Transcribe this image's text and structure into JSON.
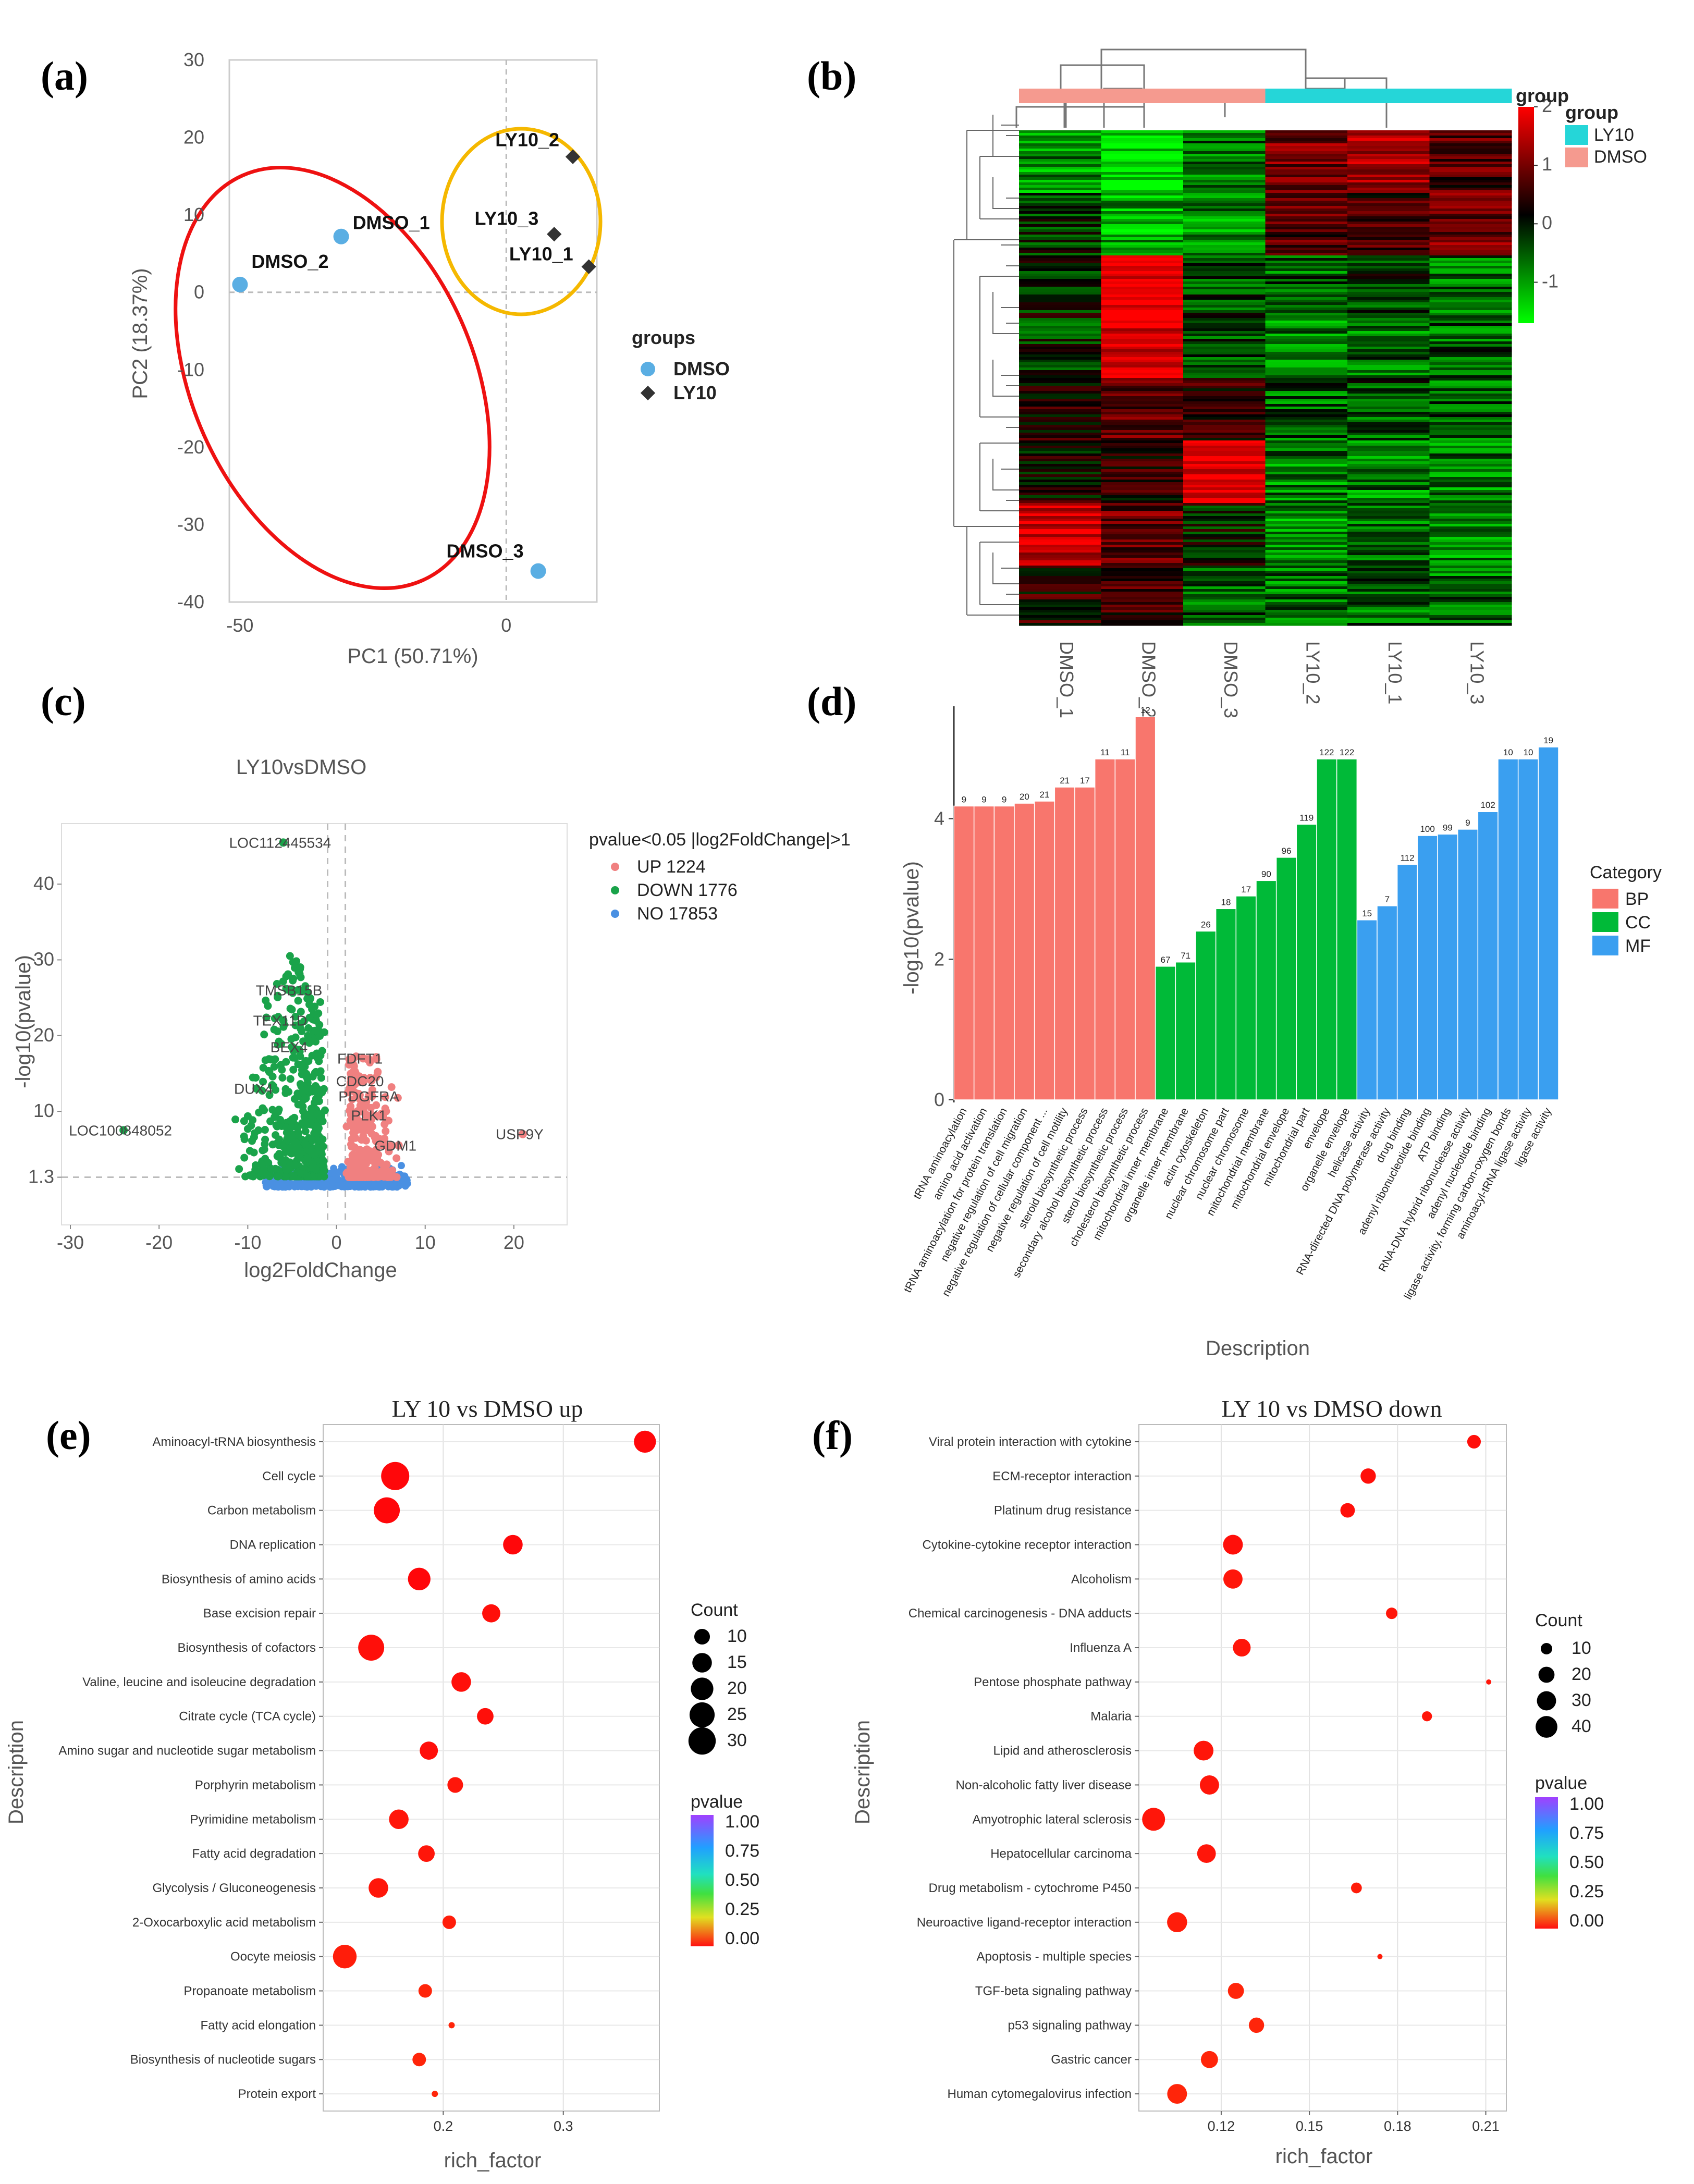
{
  "panels": {
    "a": "(a)",
    "b": "(b)",
    "c": "(c)",
    "d": "(d)",
    "e": "(e)",
    "f": "(f)"
  },
  "chart_data": [
    {
      "panel": "a",
      "type": "scatter",
      "xlabel": "PC1 (50.71%)",
      "ylabel": "PC2 (18.37%)",
      "xticks": [
        -50,
        0
      ],
      "yticks": [
        30,
        20,
        10,
        0,
        -10,
        -20,
        -30,
        -40
      ],
      "xlim": [
        -52,
        17
      ],
      "ylim": [
        -40,
        30
      ],
      "legend_title": "groups",
      "series": [
        {
          "name": "DMSO",
          "color": "#5aaee3",
          "marker": "circle",
          "points": [
            {
              "label": "DMSO_1",
              "x": -31,
              "y": 7.2
            },
            {
              "label": "DMSO_2",
              "x": -50,
              "y": 1
            },
            {
              "label": "DMSO_3",
              "x": 6,
              "y": -36
            }
          ]
        },
        {
          "name": "LY10",
          "color": "#333333",
          "marker": "diamond",
          "points": [
            {
              "label": "LY10_2",
              "x": 12.5,
              "y": 17.5
            },
            {
              "label": "LY10_3",
              "x": 9,
              "y": 7.5
            },
            {
              "label": "LY10_1",
              "x": 15.5,
              "y": 3.3
            }
          ]
        }
      ]
    },
    {
      "panel": "b",
      "type": "heatmap",
      "columns": [
        "DMSO_1",
        "DMSO_2",
        "DMSO_3",
        "LY10_2",
        "LY10_1",
        "LY10_3"
      ],
      "column_groups": [
        "DMSO",
        "DMSO",
        "DMSO",
        "LY10",
        "LY10",
        "LY10"
      ],
      "legend_title": "group",
      "group_legend": [
        {
          "name": "LY10",
          "color": "#25d6d8"
        },
        {
          "name": "DMSO",
          "color": "#f59a8f"
        }
      ],
      "colorbar": {
        "ticks": [
          2,
          1,
          0,
          -1
        ],
        "min": -1.7,
        "max": 2
      },
      "block_values": [
        [
          -0.9,
          -1.5,
          -0.7,
          0.9,
          1.3,
          0.6
        ],
        [
          -0.3,
          -1.1,
          -0.9,
          0.6,
          0.5,
          0.9
        ],
        [
          -0.1,
          2.0,
          -0.4,
          -0.6,
          -0.3,
          -0.7
        ],
        [
          -0.3,
          1.8,
          -0.4,
          -0.9,
          -0.7,
          -0.6
        ],
        [
          0.2,
          0.7,
          0.3,
          -0.6,
          -0.5,
          -0.6
        ],
        [
          0.1,
          0.3,
          1.8,
          -0.8,
          -0.8,
          -0.8
        ],
        [
          1.6,
          0.8,
          -0.1,
          -0.9,
          -0.8,
          -0.9
        ],
        [
          0.3,
          0.5,
          -0.6,
          -0.7,
          -0.6,
          -0.7
        ]
      ]
    },
    {
      "panel": "c",
      "type": "scatter",
      "title": "LY10vsDMSO",
      "xlabel": "log2FoldChange",
      "ylabel": "-log10(pvalue)",
      "xticks": [
        -30,
        -20,
        -10,
        0,
        10,
        20
      ],
      "yticks": [
        40,
        30,
        20,
        10,
        1.3
      ],
      "xlim": [
        -31,
        26
      ],
      "ylim": [
        -5,
        48
      ],
      "legend_title": "pvalue<0.05 |log2FoldChange|>1",
      "legend": [
        {
          "name": "UP 1224",
          "color": "#f08080"
        },
        {
          "name": "DOWN 1776",
          "color": "#1aa34a"
        },
        {
          "name": "NO 17853",
          "color": "#4a90e2"
        }
      ],
      "labels": [
        {
          "text": "LOC112445534",
          "x": -6,
          "y": 45.5,
          "group": "down"
        },
        {
          "text": "TMSB15B",
          "x": -5,
          "y": 26,
          "group": "down"
        },
        {
          "text": "TEX11D",
          "x": -6,
          "y": 22,
          "group": "down"
        },
        {
          "text": "BEX4",
          "x": -5,
          "y": 18.5,
          "group": "down"
        },
        {
          "text": "DUX4",
          "x": -9,
          "y": 13,
          "group": "down"
        },
        {
          "text": "LOC100848052",
          "x": -24,
          "y": 7.5,
          "group": "down"
        },
        {
          "text": "FDFT1",
          "x": 3,
          "y": 17,
          "group": "up"
        },
        {
          "text": "CDC20",
          "x": 3,
          "y": 14,
          "group": "up"
        },
        {
          "text": "PDGFRA",
          "x": 4,
          "y": 12,
          "group": "up"
        },
        {
          "text": "PLK1",
          "x": 4,
          "y": 9.5,
          "group": "up"
        },
        {
          "text": "GDM1",
          "x": 7,
          "y": 5.5,
          "group": "up"
        },
        {
          "text": "USP9Y",
          "x": 21,
          "y": 7,
          "group": "up"
        }
      ]
    },
    {
      "panel": "d",
      "type": "bar",
      "xlabel": "Description",
      "ylabel": "-log10(pvalue)",
      "yticks": [
        0,
        2,
        4
      ],
      "ylim": [
        0,
        5.6
      ],
      "legend_title": "Category",
      "legend": [
        {
          "name": "BP",
          "color": "#f8766d"
        },
        {
          "name": "CC",
          "color": "#00ba38"
        },
        {
          "name": "MF",
          "color": "#3a9ff0"
        }
      ],
      "bars": [
        {
          "label": "tRNA aminoacylation",
          "value": 4.18,
          "count": "9",
          "cat": "BP"
        },
        {
          "label": "amino acid activation",
          "value": 4.18,
          "count": "9",
          "cat": "BP"
        },
        {
          "label": "tRNA aminoacylation for protein translation",
          "value": 4.18,
          "count": "9",
          "cat": "BP"
        },
        {
          "label": "negative regulation of cell migration",
          "value": 4.22,
          "count": "20",
          "cat": "BP"
        },
        {
          "label": "negative regulation of cellular component ...",
          "value": 4.25,
          "count": "21",
          "cat": "BP"
        },
        {
          "label": "negative regulation of cell motility",
          "value": 4.45,
          "count": "21",
          "cat": "BP"
        },
        {
          "label": "steroid biosynthetic process",
          "value": 4.45,
          "count": "17",
          "cat": "BP"
        },
        {
          "label": "secondary alcohol biosynthetic process",
          "value": 4.85,
          "count": "11",
          "cat": "BP"
        },
        {
          "label": "sterol biosynthetic process",
          "value": 4.85,
          "count": "11",
          "cat": "BP"
        },
        {
          "label": "cholesterol biosynthetic process",
          "value": 5.45,
          "count": "12",
          "cat": "BP"
        },
        {
          "label": "mitochondrial inner membrane",
          "value": 1.9,
          "count": "67",
          "cat": "CC"
        },
        {
          "label": "organelle inner membrane",
          "value": 1.96,
          "count": "71",
          "cat": "CC"
        },
        {
          "label": "actin cytoskeleton",
          "value": 2.4,
          "count": "26",
          "cat": "CC"
        },
        {
          "label": "nuclear chromosome part",
          "value": 2.72,
          "count": "18",
          "cat": "CC"
        },
        {
          "label": "nuclear chromosome",
          "value": 2.9,
          "count": "17",
          "cat": "CC"
        },
        {
          "label": "mitochondrial membrane",
          "value": 3.12,
          "count": "90",
          "cat": "CC"
        },
        {
          "label": "mitochondrial envelope",
          "value": 3.45,
          "count": "96",
          "cat": "CC"
        },
        {
          "label": "mitochondrial part",
          "value": 3.92,
          "count": "119",
          "cat": "CC"
        },
        {
          "label": "envelope",
          "value": 4.85,
          "count": "122",
          "cat": "CC"
        },
        {
          "label": "organelle envelope",
          "value": 4.85,
          "count": "122",
          "cat": "CC"
        },
        {
          "label": "helicase activity",
          "value": 2.56,
          "count": "15",
          "cat": "MF"
        },
        {
          "label": "RNA-directed DNA polymerase activity",
          "value": 2.76,
          "count": "7",
          "cat": "MF"
        },
        {
          "label": "drug binding",
          "value": 3.35,
          "count": "112",
          "cat": "MF"
        },
        {
          "label": "adenyl ribonucleotide binding",
          "value": 3.76,
          "count": "100",
          "cat": "MF"
        },
        {
          "label": "ATP binding",
          "value": 3.78,
          "count": "99",
          "cat": "MF"
        },
        {
          "label": "RNA-DNA hybrid ribonuclease activity",
          "value": 3.85,
          "count": "9",
          "cat": "MF"
        },
        {
          "label": "adenyl nucleotide binding",
          "value": 4.1,
          "count": "102",
          "cat": "MF"
        },
        {
          "label": "ligase activity, forming carbon-oxygen bonds",
          "value": 4.85,
          "count": "10",
          "cat": "MF"
        },
        {
          "label": "aminoacyl-tRNA ligase activity",
          "value": 4.85,
          "count": "10",
          "cat": "MF"
        },
        {
          "label": "ligase activity",
          "value": 5.02,
          "count": "19",
          "cat": "MF"
        }
      ]
    },
    {
      "panel": "e",
      "type": "scatter",
      "title": "LY 10 vs DMSO up",
      "xlabel": "rich_factor",
      "ylabel": "Description",
      "xticks": [
        0.2,
        0.3
      ],
      "xlim": [
        0.1,
        0.38
      ],
      "size_legend_title": "Count",
      "size_legend": [
        10,
        15,
        20,
        25,
        30
      ],
      "color_legend_title": "pvalue",
      "color_ticks": [
        "1.00",
        "0.75",
        "0.50",
        "0.25",
        "0.00"
      ],
      "rows": [
        {
          "term": "Aminoacyl-tRNA biosynthesis",
          "x": 0.368,
          "count": 19,
          "p": 0.01
        },
        {
          "term": "Cell cycle",
          "x": 0.16,
          "count": 32,
          "p": 0.01
        },
        {
          "term": "Carbon metabolism",
          "x": 0.153,
          "count": 27,
          "p": 0.01
        },
        {
          "term": "DNA replication",
          "x": 0.258,
          "count": 15,
          "p": 0.01
        },
        {
          "term": "Biosynthesis of amino acids",
          "x": 0.18,
          "count": 20,
          "p": 0.01
        },
        {
          "term": "Base excision repair",
          "x": 0.24,
          "count": 13,
          "p": 0.02
        },
        {
          "term": "Biosynthesis of cofactors",
          "x": 0.14,
          "count": 27,
          "p": 0.02
        },
        {
          "term": "Valine, leucine and isoleucine degradation",
          "x": 0.215,
          "count": 15,
          "p": 0.02
        },
        {
          "term": "Citrate cycle (TCA cycle)",
          "x": 0.235,
          "count": 11,
          "p": 0.02
        },
        {
          "term": "Amino sugar and nucleotide sugar metabolism",
          "x": 0.188,
          "count": 13,
          "p": 0.02
        },
        {
          "term": "Porphyrin metabolism",
          "x": 0.21,
          "count": 10,
          "p": 0.03
        },
        {
          "term": "Pyrimidine metabolism",
          "x": 0.163,
          "count": 15,
          "p": 0.03
        },
        {
          "term": "Fatty acid degradation",
          "x": 0.186,
          "count": 11,
          "p": 0.03
        },
        {
          "term": "Glycolysis / Gluconeogenesis",
          "x": 0.146,
          "count": 15,
          "p": 0.03
        },
        {
          "term": "2-Oxocarboxylic acid metabolism",
          "x": 0.205,
          "count": 8,
          "p": 0.04
        },
        {
          "term": "Oocyte meiosis",
          "x": 0.118,
          "count": 22,
          "p": 0.04
        },
        {
          "term": "Propanoate metabolism",
          "x": 0.185,
          "count": 8,
          "p": 0.05
        },
        {
          "term": "Fatty acid elongation",
          "x": 0.207,
          "count": 5,
          "p": 0.05
        },
        {
          "term": "Biosynthesis of nucleotide sugars",
          "x": 0.18,
          "count": 8,
          "p": 0.05
        },
        {
          "term": "Protein export",
          "x": 0.193,
          "count": 5,
          "p": 0.05
        }
      ]
    },
    {
      "panel": "f",
      "type": "scatter",
      "title": "LY 10 vs DMSO down",
      "xlabel": "rich_factor",
      "ylabel": "Description",
      "xticks": [
        0.12,
        0.15,
        0.18,
        0.21
      ],
      "xlim": [
        0.092,
        0.217
      ],
      "size_legend_title": "Count",
      "size_legend": [
        10,
        20,
        30,
        40
      ],
      "color_legend_title": "pvalue",
      "color_ticks": [
        "1.00",
        "0.75",
        "0.50",
        "0.25",
        "0.00"
      ],
      "rows": [
        {
          "term": "Viral protein interaction with cytokine",
          "x": 0.206,
          "count": 14,
          "p": 0.02
        },
        {
          "term": "ECM-receptor interaction",
          "x": 0.17,
          "count": 18,
          "p": 0.02
        },
        {
          "term": "Platinum drug resistance",
          "x": 0.163,
          "count": 16,
          "p": 0.02
        },
        {
          "term": "Cytokine-cytokine receptor interaction",
          "x": 0.124,
          "count": 32,
          "p": 0.02
        },
        {
          "term": "Alcoholism",
          "x": 0.124,
          "count": 30,
          "p": 0.03
        },
        {
          "term": "Chemical carcinogenesis - DNA adducts",
          "x": 0.178,
          "count": 10,
          "p": 0.03
        },
        {
          "term": "Influenza A",
          "x": 0.127,
          "count": 25,
          "p": 0.03
        },
        {
          "term": "Pentose phosphate pathway",
          "x": 0.211,
          "count": 5,
          "p": 0.03
        },
        {
          "term": "Malaria",
          "x": 0.19,
          "count": 8,
          "p": 0.03
        },
        {
          "term": "Lipid and atherosclerosis",
          "x": 0.114,
          "count": 32,
          "p": 0.03
        },
        {
          "term": "Non-alcoholic fatty liver disease",
          "x": 0.116,
          "count": 30,
          "p": 0.03
        },
        {
          "term": "Amyotrophic lateral sclerosis",
          "x": 0.097,
          "count": 45,
          "p": 0.03
        },
        {
          "term": "Hepatocellular carcinoma",
          "x": 0.115,
          "count": 28,
          "p": 0.03
        },
        {
          "term": "Drug metabolism - cytochrome P450",
          "x": 0.166,
          "count": 9,
          "p": 0.04
        },
        {
          "term": "Neuroactive ligand-receptor interaction",
          "x": 0.105,
          "count": 33,
          "p": 0.04
        },
        {
          "term": "Apoptosis - multiple species",
          "x": 0.174,
          "count": 5,
          "p": 0.04
        },
        {
          "term": "TGF-beta signaling pathway",
          "x": 0.125,
          "count": 20,
          "p": 0.05
        },
        {
          "term": "p53 signaling pathway",
          "x": 0.132,
          "count": 18,
          "p": 0.05
        },
        {
          "term": "Gastric cancer",
          "x": 0.116,
          "count": 23,
          "p": 0.05
        },
        {
          "term": "Human cytomegalovirus infection",
          "x": 0.105,
          "count": 32,
          "p": 0.05
        }
      ]
    }
  ]
}
